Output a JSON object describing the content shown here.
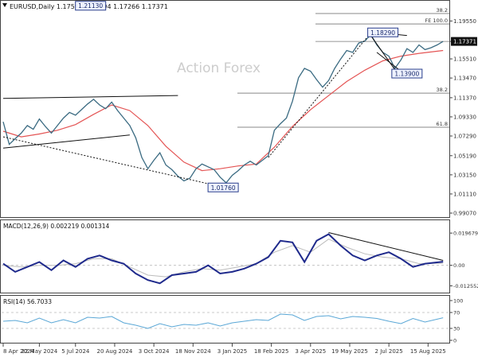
{
  "colors": {
    "price": "#3b6b82",
    "ma": "#e45454",
    "trend": "#111111",
    "macd": "#1f2a8c",
    "signal": "#bbbbbb",
    "rsi": "#5aa7d6",
    "level": "#888888",
    "callout_border": "#2b3f8c",
    "callout_bg": "#eef2ff",
    "watermark": "#cdcdcd"
  },
  "chart_data": [
    {
      "type": "line",
      "panel": "price",
      "title": "EURUSD,Daily  1.17599  1.17794  1.17266  1.17371",
      "watermark": "Action Forex",
      "y_ticks": [
        1.1955,
        1.17371,
        1.1551,
        1.1347,
        1.1137,
        1.0933,
        1.0729,
        1.0519,
        1.0315,
        1.0111,
        0.9907
      ],
      "y_tick_labels": [
        "1.19550",
        "1.17371",
        "1.15510",
        "1.13470",
        "1.11370",
        "1.09330",
        "1.07290",
        "1.05190",
        "1.03150",
        "1.01110",
        "0.99070"
      ],
      "ylim": [
        0.989,
        1.206
      ],
      "last_price": 1.17371,
      "fib_levels": [
        {
          "label": "38.2",
          "value": 1.2035
        },
        {
          "label": "FE 100.0",
          "value": 1.1923
        },
        {
          "label": "38.2",
          "value": 1.1186
        },
        {
          "label": "61.8",
          "value": 1.0822
        }
      ],
      "callouts": [
        {
          "text": "1.21130",
          "x": 14.5,
          "y": 1.2113
        },
        {
          "text": "1.01760",
          "x": 36.5,
          "y": 1.0176
        },
        {
          "text": "1.18290",
          "x": 63.0,
          "y": 1.1829
        },
        {
          "text": "1.13900",
          "x": 67.0,
          "y": 1.139
        }
      ],
      "trendlines": [
        {
          "x1": 0,
          "y1": 1.113,
          "x2": 29,
          "y2": 1.116,
          "style": "solid"
        },
        {
          "x1": 0,
          "y1": 1.06,
          "x2": 21,
          "y2": 1.074,
          "style": "solid"
        },
        {
          "x1": 0,
          "y1": 1.072,
          "x2": 37,
          "y2": 1.0176,
          "style": "dashed"
        },
        {
          "x1": 44,
          "y1": 1.05,
          "x2": 61,
          "y2": 1.1829,
          "style": "dashed"
        },
        {
          "x1": 61,
          "y1": 1.184,
          "x2": 67,
          "y2": 1.18,
          "style": "solid"
        },
        {
          "x1": 61,
          "y1": 1.18,
          "x2": 65.5,
          "y2": 1.139,
          "style": "solid"
        },
        {
          "x1": 62,
          "y1": 1.162,
          "x2": 66,
          "y2": 1.142,
          "style": "solid"
        }
      ],
      "series": [
        {
          "name": "EURUSD",
          "x": [
            0,
            1,
            2,
            3,
            4,
            5,
            6,
            7,
            8,
            9,
            10,
            11,
            12,
            13,
            14,
            15,
            16,
            17,
            18,
            19,
            20,
            21,
            22,
            23,
            24,
            25,
            26,
            27,
            28,
            29,
            30,
            31,
            32,
            33,
            34,
            35,
            36,
            37,
            38,
            39,
            40,
            41,
            42,
            43,
            44,
            45,
            46,
            47,
            48,
            49,
            50,
            51,
            52,
            53,
            54,
            55,
            56,
            57,
            58,
            59,
            60,
            61,
            62,
            63,
            64,
            65,
            66,
            67,
            68,
            69,
            70,
            71,
            72,
            73
          ],
          "y": [
            1.088,
            1.064,
            1.07,
            1.076,
            1.084,
            1.08,
            1.091,
            1.083,
            1.076,
            1.084,
            1.092,
            1.098,
            1.095,
            1.101,
            1.107,
            1.112,
            1.106,
            1.102,
            1.109,
            1.1,
            1.092,
            1.084,
            1.071,
            1.05,
            1.038,
            1.047,
            1.055,
            1.042,
            1.037,
            1.03,
            1.025,
            1.028,
            1.038,
            1.043,
            1.04,
            1.037,
            1.029,
            1.023,
            1.031,
            1.036,
            1.042,
            1.046,
            1.042,
            1.047,
            1.052,
            1.079,
            1.086,
            1.092,
            1.11,
            1.135,
            1.145,
            1.142,
            1.133,
            1.125,
            1.132,
            1.145,
            1.155,
            1.164,
            1.162,
            1.172,
            1.174,
            1.181,
            1.17,
            1.162,
            1.158,
            1.145,
            1.154,
            1.166,
            1.162,
            1.17,
            1.165,
            1.167,
            1.17,
            1.1737
          ]
        },
        {
          "name": "MA",
          "x": [
            0,
            3,
            6,
            9,
            12,
            15,
            18,
            21,
            24,
            27,
            30,
            33,
            36,
            39,
            42,
            45,
            48,
            51,
            54,
            57,
            60,
            63,
            66,
            69,
            73
          ],
          "y": [
            1.078,
            1.072,
            1.075,
            1.079,
            1.085,
            1.096,
            1.106,
            1.1,
            1.084,
            1.062,
            1.045,
            1.036,
            1.038,
            1.041,
            1.043,
            1.061,
            1.083,
            1.101,
            1.116,
            1.131,
            1.143,
            1.153,
            1.158,
            1.161,
            1.164
          ]
        }
      ]
    },
    {
      "type": "line",
      "panel": "macd",
      "title": "MACD(12,26,9) 0.002219 0.001314",
      "y_tick_labels": [
        "0.019679",
        "0.00",
        "-0.012552"
      ],
      "ylim": [
        -0.0157,
        0.0212
      ],
      "series": [
        {
          "name": "MACD",
          "x": [
            0,
            2,
            4,
            6,
            8,
            10,
            12,
            14,
            16,
            18,
            20,
            22,
            24,
            26,
            28,
            30,
            32,
            34,
            36,
            38,
            40,
            42,
            44,
            46,
            48,
            50,
            52,
            54,
            56,
            58,
            60,
            62,
            64,
            66,
            68,
            70,
            73
          ],
          "y": [
            0.001,
            -0.004,
            -0.001,
            0.002,
            -0.003,
            0.003,
            -0.001,
            0.004,
            0.006,
            0.003,
            0.001,
            -0.005,
            -0.009,
            -0.011,
            -0.006,
            -0.005,
            -0.004,
            0.0,
            -0.005,
            -0.004,
            -0.002,
            0.001,
            0.005,
            0.015,
            0.014,
            0.002,
            0.015,
            0.019,
            0.012,
            0.006,
            0.003,
            0.006,
            0.008,
            0.004,
            -0.001,
            0.001,
            0.0022
          ]
        },
        {
          "name": "Signal",
          "x": [
            0,
            3,
            6,
            9,
            12,
            15,
            18,
            21,
            24,
            27,
            30,
            33,
            36,
            39,
            42,
            45,
            48,
            51,
            54,
            57,
            60,
            63,
            66,
            69,
            73
          ],
          "y": [
            0.0,
            -0.001,
            0.0,
            0.0,
            0.001,
            0.004,
            0.004,
            -0.001,
            -0.006,
            -0.007,
            -0.004,
            -0.002,
            -0.003,
            -0.001,
            0.001,
            0.008,
            0.012,
            0.008,
            0.016,
            0.011,
            0.007,
            0.005,
            0.004,
            0.001,
            0.0013
          ]
        }
      ],
      "trendline": {
        "x1": 54,
        "y1": 0.02,
        "x2": 73,
        "y2": 0.003
      }
    },
    {
      "type": "line",
      "panel": "rsi",
      "title": "RSI(14) 56.7033",
      "y_tick_labels": [
        "100",
        "70",
        "30",
        "0"
      ],
      "ylim": [
        0,
        100
      ],
      "levels": [
        70,
        30
      ],
      "series": [
        {
          "name": "RSI",
          "x": [
            0,
            2,
            4,
            6,
            8,
            10,
            12,
            14,
            16,
            18,
            20,
            22,
            24,
            26,
            28,
            30,
            32,
            34,
            36,
            38,
            40,
            42,
            44,
            46,
            48,
            50,
            52,
            54,
            56,
            58,
            60,
            62,
            64,
            66,
            68,
            70,
            73
          ],
          "y": [
            48,
            50,
            44,
            56,
            44,
            52,
            44,
            58,
            56,
            60,
            44,
            38,
            30,
            42,
            34,
            40,
            38,
            44,
            36,
            44,
            48,
            52,
            50,
            66,
            64,
            50,
            60,
            62,
            54,
            60,
            58,
            55,
            48,
            42,
            55,
            46,
            56.7
          ]
        }
      ]
    }
  ],
  "x_axis": {
    "labels": [
      "8 Apr 2024",
      "22 May 2024",
      "5 Jul 2024",
      "20 Aug 2024",
      "3 Oct 2024",
      "18 Nov 2024",
      "3 Jan 2025",
      "18 Feb 2025",
      "3 Apr 2025",
      "19 May 2025",
      "2 Jul 2025",
      "15 Aug 2025"
    ],
    "positions": [
      0,
      6,
      12,
      18.5,
      25,
      31.5,
      38,
      44.5,
      51,
      57.5,
      64,
      70.5
    ],
    "xlim": [
      0,
      73.5
    ]
  }
}
